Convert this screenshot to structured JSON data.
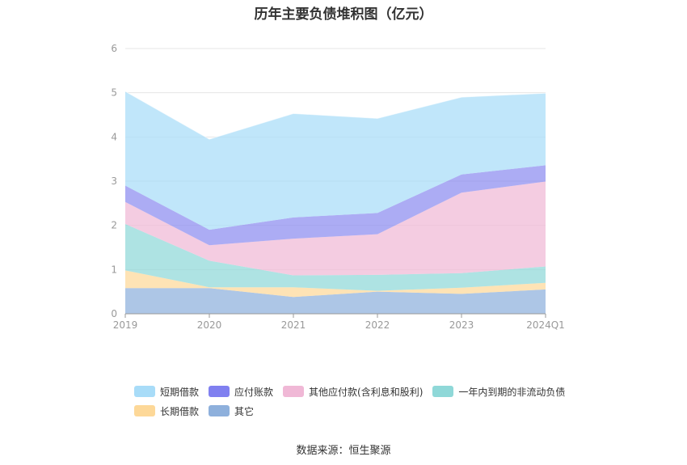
{
  "chart_data": {
    "type": "area",
    "stacked": true,
    "title": "历年主要负债堆积图（亿元）",
    "categories": [
      "2019",
      "2020",
      "2021",
      "2022",
      "2023",
      "2024Q1"
    ],
    "ylim": [
      0,
      6
    ],
    "yticks": [
      0,
      1,
      2,
      3,
      4,
      5,
      6
    ],
    "grid": true,
    "legend_position": "bottom",
    "series": [
      {
        "name": "其它",
        "color": "#8EB0DC",
        "values": [
          0.58,
          0.58,
          0.38,
          0.5,
          0.45,
          0.55
        ]
      },
      {
        "name": "长期借款",
        "color": "#FDD898",
        "values": [
          0.4,
          0.02,
          0.22,
          0.02,
          0.14,
          0.15
        ]
      },
      {
        "name": "一年内到期的非流动负债",
        "color": "#8FD8D8",
        "values": [
          1.05,
          0.6,
          0.27,
          0.36,
          0.33,
          0.37
        ]
      },
      {
        "name": "其他应付款(含利息和股利)",
        "color": "#F0B8D6",
        "values": [
          0.5,
          0.35,
          0.83,
          0.92,
          1.82,
          1.92
        ]
      },
      {
        "name": "应付账款",
        "color": "#8C8CF0",
        "values": [
          0.37,
          0.35,
          0.48,
          0.48,
          0.41,
          0.37
        ]
      },
      {
        "name": "短期借款",
        "color": "#A8DCF8",
        "values": [
          2.13,
          2.05,
          2.35,
          2.14,
          1.75,
          1.63
        ]
      }
    ]
  },
  "legend": {
    "rows": [
      [
        {
          "label": "短期借款",
          "color": "#A8DCF8"
        },
        {
          "label": "应付账款",
          "color": "#8080F0"
        },
        {
          "label": "其他应付款(含利息和股利)",
          "color": "#F0B8D6"
        },
        {
          "label": "一年内到期的非流动负债",
          "color": "#8FD8D8"
        }
      ],
      [
        {
          "label": "长期借款",
          "color": "#FDD898"
        },
        {
          "label": "其它",
          "color": "#8EB0DC"
        }
      ]
    ]
  },
  "source": "数据来源：恒生聚源"
}
